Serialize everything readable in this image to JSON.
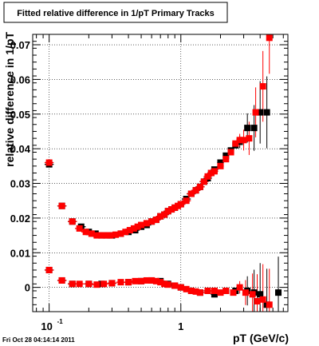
{
  "title": "Fitted relative difference in 1/pT  Primary Tracks",
  "timestamp": "Fri Oct 28 04:14:14 2011",
  "chart_data": {
    "type": "scatter",
    "xlabel": "pT (GeV/c)",
    "ylabel": "relative difference in 1/pT",
    "x_scale": "log",
    "xlim": [
      0.075,
      6.5
    ],
    "ylim": [
      -0.007,
      0.073
    ],
    "grid": true,
    "x_ticks": [
      {
        "value": 0.1,
        "base": "10",
        "exp": "-1"
      },
      {
        "value": 1,
        "label": "1"
      }
    ],
    "y_ticks": [
      {
        "value": 0,
        "label": "0"
      },
      {
        "value": 0.01,
        "label": "0.01"
      },
      {
        "value": 0.02,
        "label": "0.02"
      },
      {
        "value": 0.03,
        "label": "0.03"
      },
      {
        "value": 0.04,
        "label": "0.04"
      },
      {
        "value": 0.05,
        "label": "0.05"
      },
      {
        "value": 0.06,
        "label": "0.06"
      },
      {
        "value": 0.07,
        "label": "0.07"
      }
    ],
    "series": [
      {
        "color": "#000000",
        "points": [
          [
            0.1,
            0.0355
          ],
          [
            0.125,
            0.0235
          ],
          [
            0.15,
            0.019
          ],
          [
            0.175,
            0.0175
          ],
          [
            0.2,
            0.016
          ],
          [
            0.225,
            0.0155
          ],
          [
            0.25,
            0.015
          ],
          [
            0.275,
            0.015
          ],
          [
            0.3,
            0.015
          ],
          [
            0.35,
            0.0155
          ],
          [
            0.4,
            0.016
          ],
          [
            0.45,
            0.0165
          ],
          [
            0.5,
            0.0175
          ],
          [
            0.55,
            0.018
          ],
          [
            0.6,
            0.019
          ],
          [
            0.65,
            0.0195
          ],
          [
            0.7,
            0.0205
          ],
          [
            0.75,
            0.021
          ],
          [
            0.8,
            0.022
          ],
          [
            0.85,
            0.0225
          ],
          [
            0.9,
            0.023
          ],
          [
            1.0,
            0.024
          ],
          [
            1.1,
            0.0255
          ],
          [
            1.2,
            0.027
          ],
          [
            1.3,
            0.028
          ],
          [
            1.4,
            0.029
          ],
          [
            1.5,
            0.0305
          ],
          [
            1.6,
            0.0315
          ],
          [
            1.7,
            0.033
          ],
          [
            1.8,
            0.034
          ],
          [
            2.0,
            0.036
          ],
          [
            2.2,
            0.038
          ],
          [
            2.4,
            0.0395
          ],
          [
            2.6,
            0.041
          ],
          [
            2.8,
            0.042
          ],
          [
            3.2,
            0.046
          ],
          [
            3.6,
            0.046
          ],
          [
            4.0,
            0.0505
          ],
          [
            4.5,
            0.0505
          ],
          [
            0.1,
            0.005
          ],
          [
            0.125,
            0.002
          ],
          [
            0.15,
            0.001
          ],
          [
            0.2,
            0.001
          ],
          [
            0.25,
            0.001
          ],
          [
            0.3,
            0.0012
          ],
          [
            0.4,
            0.0015
          ],
          [
            0.5,
            0.0018
          ],
          [
            0.6,
            0.002
          ],
          [
            0.7,
            0.0018
          ],
          [
            0.8,
            0.001
          ],
          [
            0.9,
            0.0005
          ],
          [
            1.0,
            0.0
          ],
          [
            1.2,
            -0.001
          ],
          [
            1.4,
            -0.0015
          ],
          [
            1.6,
            -0.001
          ],
          [
            1.8,
            -0.002
          ],
          [
            2.2,
            -0.001
          ],
          [
            2.6,
            -0.001
          ],
          [
            3.2,
            -0.001
          ],
          [
            3.6,
            -0.0015
          ],
          [
            4.0,
            -0.002
          ],
          [
            4.5,
            -0.005
          ],
          [
            5.5,
            -0.0015
          ]
        ]
      },
      {
        "color": "#ff0000",
        "points": [
          [
            0.1,
            0.036
          ],
          [
            0.125,
            0.0235
          ],
          [
            0.15,
            0.019
          ],
          [
            0.17,
            0.017
          ],
          [
            0.19,
            0.016
          ],
          [
            0.21,
            0.0155
          ],
          [
            0.23,
            0.015
          ],
          [
            0.25,
            0.015
          ],
          [
            0.27,
            0.015
          ],
          [
            0.29,
            0.015
          ],
          [
            0.32,
            0.0152
          ],
          [
            0.35,
            0.0155
          ],
          [
            0.38,
            0.016
          ],
          [
            0.41,
            0.0165
          ],
          [
            0.44,
            0.017
          ],
          [
            0.47,
            0.0175
          ],
          [
            0.5,
            0.018
          ],
          [
            0.55,
            0.0185
          ],
          [
            0.6,
            0.019
          ],
          [
            0.65,
            0.0195
          ],
          [
            0.7,
            0.0205
          ],
          [
            0.75,
            0.021
          ],
          [
            0.8,
            0.022
          ],
          [
            0.85,
            0.0225
          ],
          [
            0.9,
            0.023
          ],
          [
            0.95,
            0.0235
          ],
          [
            1.0,
            0.024
          ],
          [
            1.1,
            0.025
          ],
          [
            1.2,
            0.027
          ],
          [
            1.3,
            0.028
          ],
          [
            1.4,
            0.029
          ],
          [
            1.5,
            0.0305
          ],
          [
            1.6,
            0.032
          ],
          [
            1.7,
            0.033
          ],
          [
            1.8,
            0.0335
          ],
          [
            2.0,
            0.035
          ],
          [
            2.2,
            0.037
          ],
          [
            2.4,
            0.039
          ],
          [
            2.6,
            0.0415
          ],
          [
            2.8,
            0.0425
          ],
          [
            3.0,
            0.0425
          ],
          [
            3.3,
            0.043
          ],
          [
            3.7,
            0.0505
          ],
          [
            4.2,
            0.058
          ],
          [
            4.7,
            0.072
          ],
          [
            0.1,
            0.005
          ],
          [
            0.125,
            0.002
          ],
          [
            0.15,
            0.001
          ],
          [
            0.17,
            0.001
          ],
          [
            0.2,
            0.001
          ],
          [
            0.23,
            0.0008
          ],
          [
            0.26,
            0.001
          ],
          [
            0.3,
            0.0012
          ],
          [
            0.35,
            0.0015
          ],
          [
            0.4,
            0.0015
          ],
          [
            0.45,
            0.0018
          ],
          [
            0.5,
            0.0018
          ],
          [
            0.55,
            0.002
          ],
          [
            0.6,
            0.002
          ],
          [
            0.65,
            0.0018
          ],
          [
            0.7,
            0.0015
          ],
          [
            0.75,
            0.001
          ],
          [
            0.8,
            0.0008
          ],
          [
            0.9,
            0.0005
          ],
          [
            1.0,
            0.0
          ],
          [
            1.1,
            -0.0005
          ],
          [
            1.2,
            -0.001
          ],
          [
            1.3,
            -0.0012
          ],
          [
            1.4,
            -0.0015
          ],
          [
            1.6,
            -0.001
          ],
          [
            1.8,
            -0.001
          ],
          [
            2.0,
            -0.0015
          ],
          [
            2.2,
            -0.001
          ],
          [
            2.5,
            -0.0015
          ],
          [
            2.8,
            0.0
          ],
          [
            3.1,
            -0.0015
          ],
          [
            3.5,
            -0.002
          ],
          [
            3.8,
            -0.004
          ],
          [
            4.2,
            -0.0035
          ],
          [
            4.7,
            -0.005
          ]
        ]
      }
    ]
  }
}
